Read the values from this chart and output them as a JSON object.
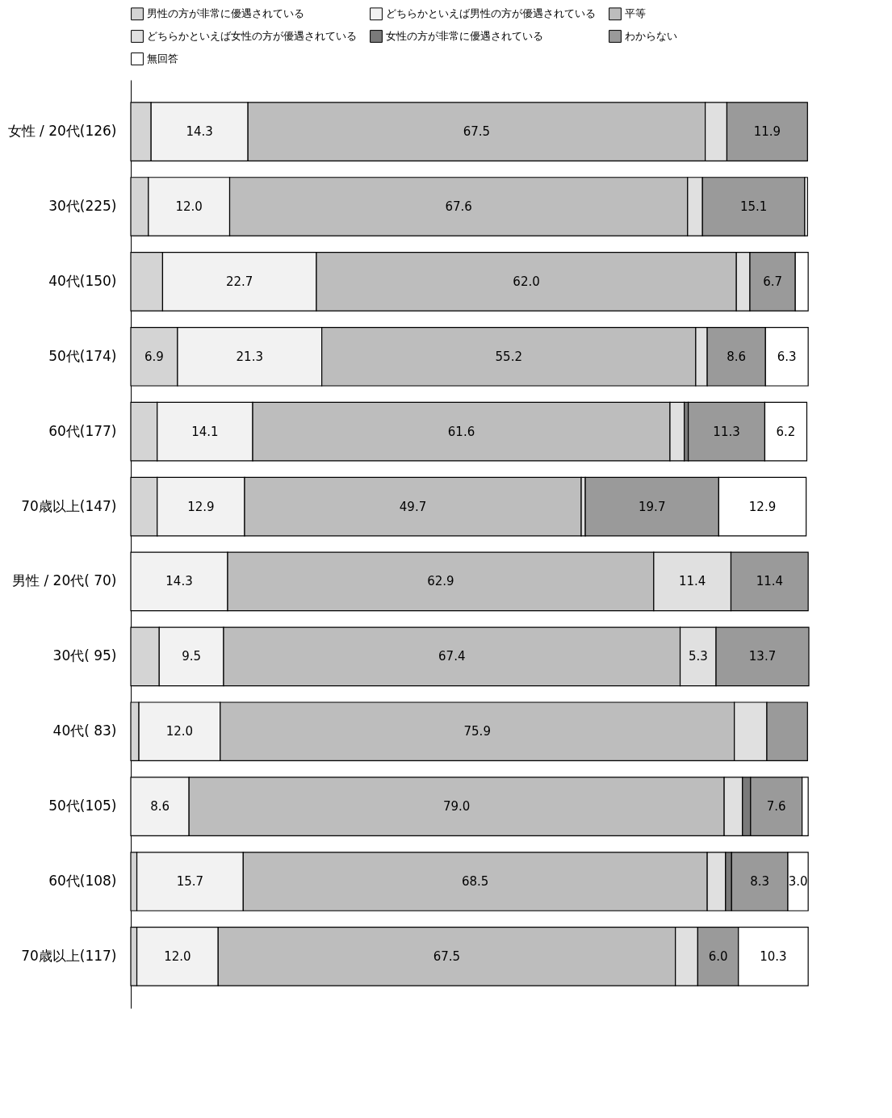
{
  "chart_data": {
    "type": "bar",
    "orientation": "horizontal",
    "stacked": true,
    "legend": "top",
    "categories": [
      "女性 / 20代(126)",
      "30代(225)",
      "40代(150)",
      "50代(174)",
      "60代(177)",
      "70歳以上(147)",
      "男性 / 20代( 70)",
      "30代( 95)",
      "40代( 83)",
      "50代(105)",
      "60代(108)",
      "70歳以上(117)"
    ],
    "series": [
      {
        "name": "男性の方が非常に優遇されている",
        "color": "#d4d4d4",
        "values": [
          3.0,
          2.6,
          4.7,
          6.9,
          3.9,
          3.9,
          0,
          4.2,
          1.2,
          0,
          0.9,
          0.9
        ],
        "value_labels": [
          null,
          null,
          null,
          "6.9",
          null,
          null,
          null,
          null,
          null,
          null,
          null,
          null
        ]
      },
      {
        "name": "どちらかといえば男性の方が優遇されている",
        "color": "#f2f2f2",
        "values": [
          14.3,
          12.0,
          22.7,
          21.3,
          14.1,
          12.9,
          14.3,
          9.5,
          12.0,
          8.6,
          15.7,
          12.0
        ],
        "value_labels": [
          "14.3",
          "12.0",
          "22.7",
          "21.3",
          "14.1",
          "12.9",
          "14.3",
          "9.5",
          "12.0",
          "8.6",
          "15.7",
          "12.0"
        ]
      },
      {
        "name": "平等",
        "color": "#bdbdbd",
        "values": [
          67.5,
          67.6,
          62.0,
          55.2,
          61.6,
          49.7,
          62.9,
          67.4,
          75.9,
          79.0,
          68.5,
          67.5
        ],
        "value_labels": [
          "67.5",
          "67.6",
          "62.0",
          "55.2",
          "61.6",
          "49.7",
          "62.9",
          "67.4",
          "75.9",
          "79.0",
          "68.5",
          "67.5"
        ]
      },
      {
        "name": "どちらかといえば女性の方が優遇されている",
        "color": "#e0e0e0",
        "values": [
          3.2,
          2.2,
          2.0,
          1.7,
          2.1,
          0.6,
          11.4,
          5.3,
          4.8,
          2.7,
          2.7,
          3.3
        ],
        "value_labels": [
          null,
          null,
          null,
          null,
          null,
          null,
          "11.4",
          "5.3",
          null,
          null,
          null,
          null
        ]
      },
      {
        "name": "女性の方が非常に優遇されている",
        "color": "#7a7a7a",
        "values": [
          0,
          0,
          0,
          0,
          0.6,
          0,
          0,
          0,
          0,
          1.2,
          0.9,
          0
        ],
        "value_labels": [
          null,
          null,
          null,
          null,
          null,
          null,
          null,
          null,
          null,
          null,
          null,
          null
        ]
      },
      {
        "name": "わからない",
        "color": "#9a9a9a",
        "values": [
          11.9,
          15.1,
          6.7,
          8.6,
          11.3,
          19.7,
          11.4,
          13.7,
          6.0,
          7.6,
          8.3,
          6.0
        ],
        "value_labels": [
          "11.9",
          "15.1",
          "6.7",
          "8.6",
          "11.3",
          "19.7",
          "11.4",
          "13.7",
          null,
          "7.6",
          "8.3",
          "6.0"
        ]
      },
      {
        "name": "無回答",
        "color": "#ffffff",
        "values": [
          0,
          0.4,
          1.9,
          6.3,
          6.2,
          12.9,
          0,
          0,
          0,
          0.9,
          3.0,
          10.3
        ],
        "value_labels": [
          null,
          null,
          null,
          "6.3",
          "6.2",
          "12.9",
          null,
          null,
          null,
          null,
          "3.0",
          "10.3"
        ]
      }
    ]
  }
}
